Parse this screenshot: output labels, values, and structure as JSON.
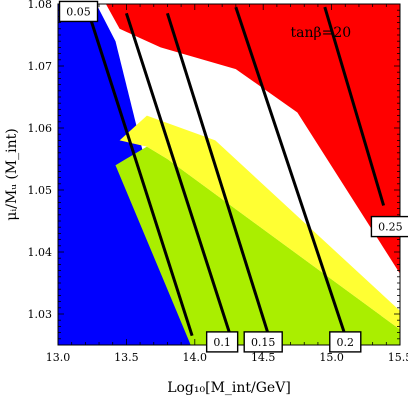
{
  "chart_data": {
    "type": "contour",
    "title": "",
    "xlabel": "Log₁₀[M_int/GeV]",
    "ylabel": "μᵢ/Mᵤ (M_int)",
    "xlim": [
      13.0,
      15.5
    ],
    "ylim": [
      1.025,
      1.08
    ],
    "xticks": [
      "13.0",
      "13.5",
      "14.0",
      "14.5",
      "15.0",
      "15.5"
    ],
    "yticks": [
      "1.03",
      "1.04",
      "1.05",
      "1.06",
      "1.07",
      "1.08"
    ],
    "annotation": "tanβ=20",
    "regions": [
      {
        "name": "blue region",
        "color": "#0000ff",
        "points": [
          [
            13.0,
            1.025
          ],
          [
            13.97,
            1.025
          ],
          [
            13.42,
            1.074
          ],
          [
            13.28,
            1.08
          ],
          [
            13.0,
            1.08
          ]
        ]
      },
      {
        "name": "green region",
        "color": "#aaee00",
        "points": [
          [
            13.97,
            1.025
          ],
          [
            15.5,
            1.025
          ],
          [
            15.5,
            1.0275
          ],
          [
            13.8,
            1.055
          ],
          [
            13.65,
            1.057
          ],
          [
            13.42,
            1.054
          ]
        ]
      },
      {
        "name": "yellow band",
        "color": "#ffff33",
        "points": [
          [
            13.8,
            1.055
          ],
          [
            15.5,
            1.0275
          ],
          [
            15.5,
            1.0305
          ],
          [
            14.15,
            1.058
          ],
          [
            13.65,
            1.062
          ],
          [
            13.45,
            1.058
          ],
          [
            13.65,
            1.057
          ]
        ]
      },
      {
        "name": "red region",
        "color": "#ff0000",
        "points": [
          [
            13.35,
            1.08
          ],
          [
            15.5,
            1.08
          ],
          [
            15.5,
            1.0365
          ],
          [
            14.75,
            1.0625
          ],
          [
            14.3,
            1.0695
          ],
          [
            13.75,
            1.073
          ],
          [
            13.45,
            1.076
          ]
        ]
      }
    ],
    "contours": [
      {
        "label": "0.05",
        "points": [
          [
            13.24,
            1.0775
          ],
          [
            13.98,
            1.0265
          ]
        ],
        "label_at": [
          13.15,
          1.0788
        ]
      },
      {
        "label": "0.1",
        "points": [
          [
            13.5,
            1.0785
          ],
          [
            14.26,
            1.0265
          ]
        ],
        "label_at": [
          14.2,
          1.0255
        ]
      },
      {
        "label": "0.15",
        "points": [
          [
            13.8,
            1.0785
          ],
          [
            14.54,
            1.0265
          ]
        ],
        "label_at": [
          14.5,
          1.0255
        ]
      },
      {
        "label": "0.2",
        "points": [
          [
            14.3,
            1.0795
          ],
          [
            15.1,
            1.0265
          ]
        ],
        "label_at": [
          15.1,
          1.0255
        ]
      },
      {
        "label": "0.25",
        "points": [
          [
            14.95,
            1.0795
          ],
          [
            15.38,
            1.0475
          ]
        ],
        "label_at": [
          15.43,
          1.0441
        ]
      }
    ]
  }
}
